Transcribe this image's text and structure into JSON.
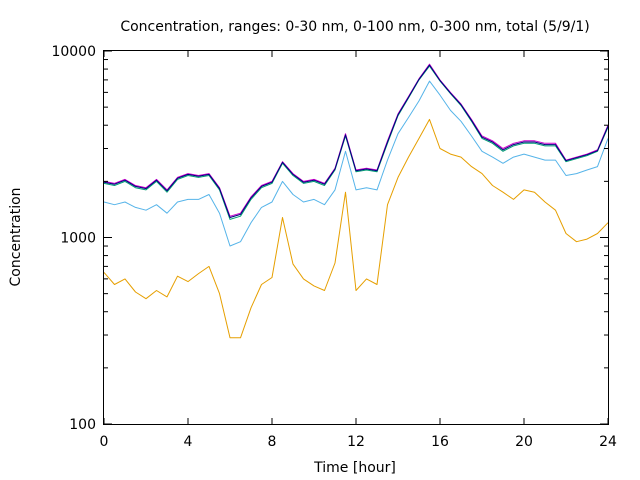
{
  "chart_data": {
    "type": "line",
    "title": "Concentration, ranges: 0-30 nm, 0-100 nm, 0-300 nm, total (5/9/1)",
    "xlabel": "Time [hour]",
    "ylabel": "Concentration",
    "xlim": [
      0,
      24
    ],
    "ylim": [
      100,
      10000
    ],
    "yscale": "log",
    "grid": false,
    "legend": "none",
    "xticks": [
      0,
      4,
      8,
      12,
      16,
      20,
      24
    ],
    "yticks": [
      100,
      1000,
      10000
    ],
    "x": [
      0,
      0.5,
      1,
      1.5,
      2,
      2.5,
      3,
      3.5,
      4,
      4.5,
      5,
      5.5,
      6,
      6.5,
      7,
      7.5,
      8,
      8.5,
      9,
      9.5,
      10,
      10.5,
      11,
      11.5,
      12,
      12.5,
      13,
      13.5,
      14,
      14.5,
      15,
      15.5,
      16,
      16.5,
      17,
      17.5,
      18,
      18.5,
      19,
      19.5,
      20,
      20.5,
      21,
      21.5,
      22,
      22.5,
      23,
      23.5,
      24
    ],
    "series": [
      {
        "color": "#e69f00",
        "values": [
          650,
          560,
          600,
          510,
          470,
          520,
          480,
          620,
          580,
          640,
          700,
          500,
          290,
          290,
          420,
          560,
          610,
          1280,
          720,
          600,
          550,
          520,
          730,
          1750,
          520,
          600,
          560,
          1500,
          2100,
          2700,
          3400,
          4300,
          3000,
          2800,
          2700,
          2400,
          2200,
          1900,
          1750,
          1600,
          1800,
          1750,
          1550,
          1400,
          1050,
          950,
          980,
          1050,
          1200
        ]
      },
      {
        "color": "#56b4e9",
        "values": [
          1550,
          1500,
          1550,
          1450,
          1400,
          1500,
          1350,
          1550,
          1600,
          1600,
          1700,
          1350,
          900,
          950,
          1200,
          1450,
          1550,
          2000,
          1700,
          1550,
          1600,
          1500,
          1800,
          2900,
          1800,
          1850,
          1800,
          2600,
          3600,
          4400,
          5400,
          6900,
          5800,
          4800,
          4200,
          3500,
          2900,
          2700,
          2500,
          2700,
          2800,
          2700,
          2600,
          2600,
          2150,
          2200,
          2300,
          2400,
          3400
        ]
      },
      {
        "color": "#009e73",
        "values": [
          1950,
          1900,
          2000,
          1850,
          1800,
          2000,
          1750,
          2050,
          2150,
          2100,
          2150,
          1800,
          1250,
          1300,
          1600,
          1850,
          1950,
          2500,
          2150,
          1950,
          2000,
          1900,
          2300,
          3500,
          2250,
          2300,
          2250,
          3200,
          4500,
          5600,
          7000,
          8300,
          6900,
          5900,
          5100,
          4200,
          3400,
          3200,
          2900,
          3100,
          3200,
          3200,
          3100,
          3100,
          2550,
          2650,
          2750,
          2900,
          3900
        ]
      },
      {
        "color": "#cc00cc",
        "values": [
          2000,
          1950,
          2050,
          1900,
          1850,
          2050,
          1800,
          2100,
          2200,
          2150,
          2200,
          1850,
          1300,
          1350,
          1650,
          1900,
          2000,
          2550,
          2200,
          2000,
          2050,
          1950,
          2350,
          3600,
          2300,
          2350,
          2300,
          3300,
          4600,
          5700,
          7100,
          8500,
          7000,
          6000,
          5200,
          4300,
          3500,
          3300,
          3000,
          3200,
          3300,
          3300,
          3200,
          3200,
          2600,
          2700,
          2800,
          2950,
          4000
        ]
      },
      {
        "color": "#000080",
        "values": [
          1980,
          1930,
          2030,
          1880,
          1830,
          2030,
          1780,
          2080,
          2180,
          2130,
          2180,
          1830,
          1280,
          1330,
          1630,
          1880,
          1980,
          2530,
          2180,
          1980,
          2030,
          1930,
          2330,
          3550,
          2280,
          2330,
          2280,
          3250,
          4550,
          5650,
          7050,
          8400,
          6950,
          5950,
          5150,
          4250,
          3450,
          3250,
          2950,
          3150,
          3250,
          3250,
          3150,
          3150,
          2580,
          2680,
          2780,
          2920,
          3950
        ]
      }
    ]
  }
}
